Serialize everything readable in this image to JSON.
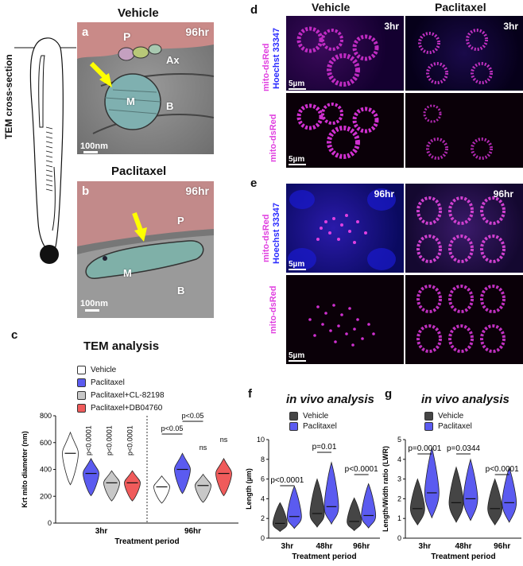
{
  "schematic": {
    "label": "TEM cross-section"
  },
  "panel_a": {
    "letter": "a",
    "title": "Vehicle",
    "time": "96hr",
    "labels": {
      "p": "P",
      "ax": "Ax",
      "m": "M",
      "b": "B"
    },
    "scale": "100nm"
  },
  "panel_b": {
    "letter": "b",
    "title": "Paclitaxel",
    "time": "96hr",
    "labels": {
      "p": "P",
      "m": "M",
      "b": "B"
    },
    "scale": "100nm"
  },
  "panel_d": {
    "letter": "d",
    "col_vehicle": "Vehicle",
    "col_paclitaxel": "Paclitaxel",
    "time": "3hr",
    "row1_label_top": "mito-dsRed",
    "row1_label_bottom": "Hoechst 33347",
    "row2_label": "mito-dsRed",
    "scale": "5µm"
  },
  "panel_e": {
    "letter": "e",
    "time": "96hr",
    "row1_label_top": "mito-dsRed",
    "row1_label_bottom": "Hoechst 33347",
    "row2_label": "mito-dsRed",
    "scale": "5µm"
  },
  "colors": {
    "vehicle": "#ffffff",
    "paclitaxel": "#5b5bf0",
    "cl": "#c8c8c8",
    "db": "#f05b5b",
    "dark": "#454545",
    "magenta": "#e040e0",
    "blue": "#2a2aff"
  },
  "chart_data": [
    {
      "panel": "c",
      "type": "violin",
      "title": "TEM analysis",
      "legend": [
        "Vehicle",
        "Paclitaxel",
        "Paclitaxel+CL-82198",
        "Paclitaxel+DB04760"
      ],
      "ylabel": "Krt mito diameter (nm)",
      "xlabel": "Treatment period",
      "categories": [
        "3hr",
        "96hr"
      ],
      "yticks": [
        0,
        200,
        400,
        600,
        800
      ],
      "ylim": [
        0,
        800
      ],
      "series": [
        {
          "name": "Vehicle",
          "medians": [
            520,
            270
          ]
        },
        {
          "name": "Paclitaxel",
          "medians": [
            370,
            400
          ]
        },
        {
          "name": "Paclitaxel+CL-82198",
          "medians": [
            300,
            280
          ]
        },
        {
          "name": "Paclitaxel+DB04760",
          "medians": [
            300,
            370
          ]
        }
      ],
      "annotations": [
        "p<0.0001",
        "p<0.0001",
        "p<0.0001",
        "p<0.05",
        "p<0.05",
        "ns",
        "ns"
      ]
    },
    {
      "panel": "f",
      "type": "violin",
      "title": "in vivo analysis",
      "legend": [
        "Vehicle",
        "Paclitaxel"
      ],
      "ylabel": "Length (µm)",
      "xlabel": "Treatment period",
      "categories": [
        "3hr",
        "48hr",
        "96hr"
      ],
      "yticks": [
        0,
        2,
        4,
        6,
        8,
        10
      ],
      "ylim": [
        0,
        10
      ],
      "series": [
        {
          "name": "Vehicle",
          "medians": [
            1.5,
            2.5,
            1.7
          ]
        },
        {
          "name": "Paclitaxel",
          "medians": [
            2.2,
            3.2,
            2.3
          ]
        }
      ],
      "annotations": [
        "p<0.0001",
        "p=0.01",
        "p<0.0001"
      ]
    },
    {
      "panel": "g",
      "type": "violin",
      "title": "in vivo analysis",
      "legend": [
        "Vehicle",
        "Paclitaxel"
      ],
      "ylabel": "Length/Width ratio (LWR)",
      "xlabel": "Treatment period",
      "categories": [
        "3hr",
        "48hr",
        "96hr"
      ],
      "yticks": [
        0,
        1,
        2,
        3,
        4,
        5
      ],
      "ylim": [
        0,
        5
      ],
      "series": [
        {
          "name": "Vehicle",
          "medians": [
            1.5,
            1.8,
            1.5
          ]
        },
        {
          "name": "Paclitaxel",
          "medians": [
            2.3,
            2.0,
            1.8
          ]
        }
      ],
      "annotations": [
        "p=0.0001",
        "p=0.0344",
        "p<0.0001"
      ]
    }
  ]
}
